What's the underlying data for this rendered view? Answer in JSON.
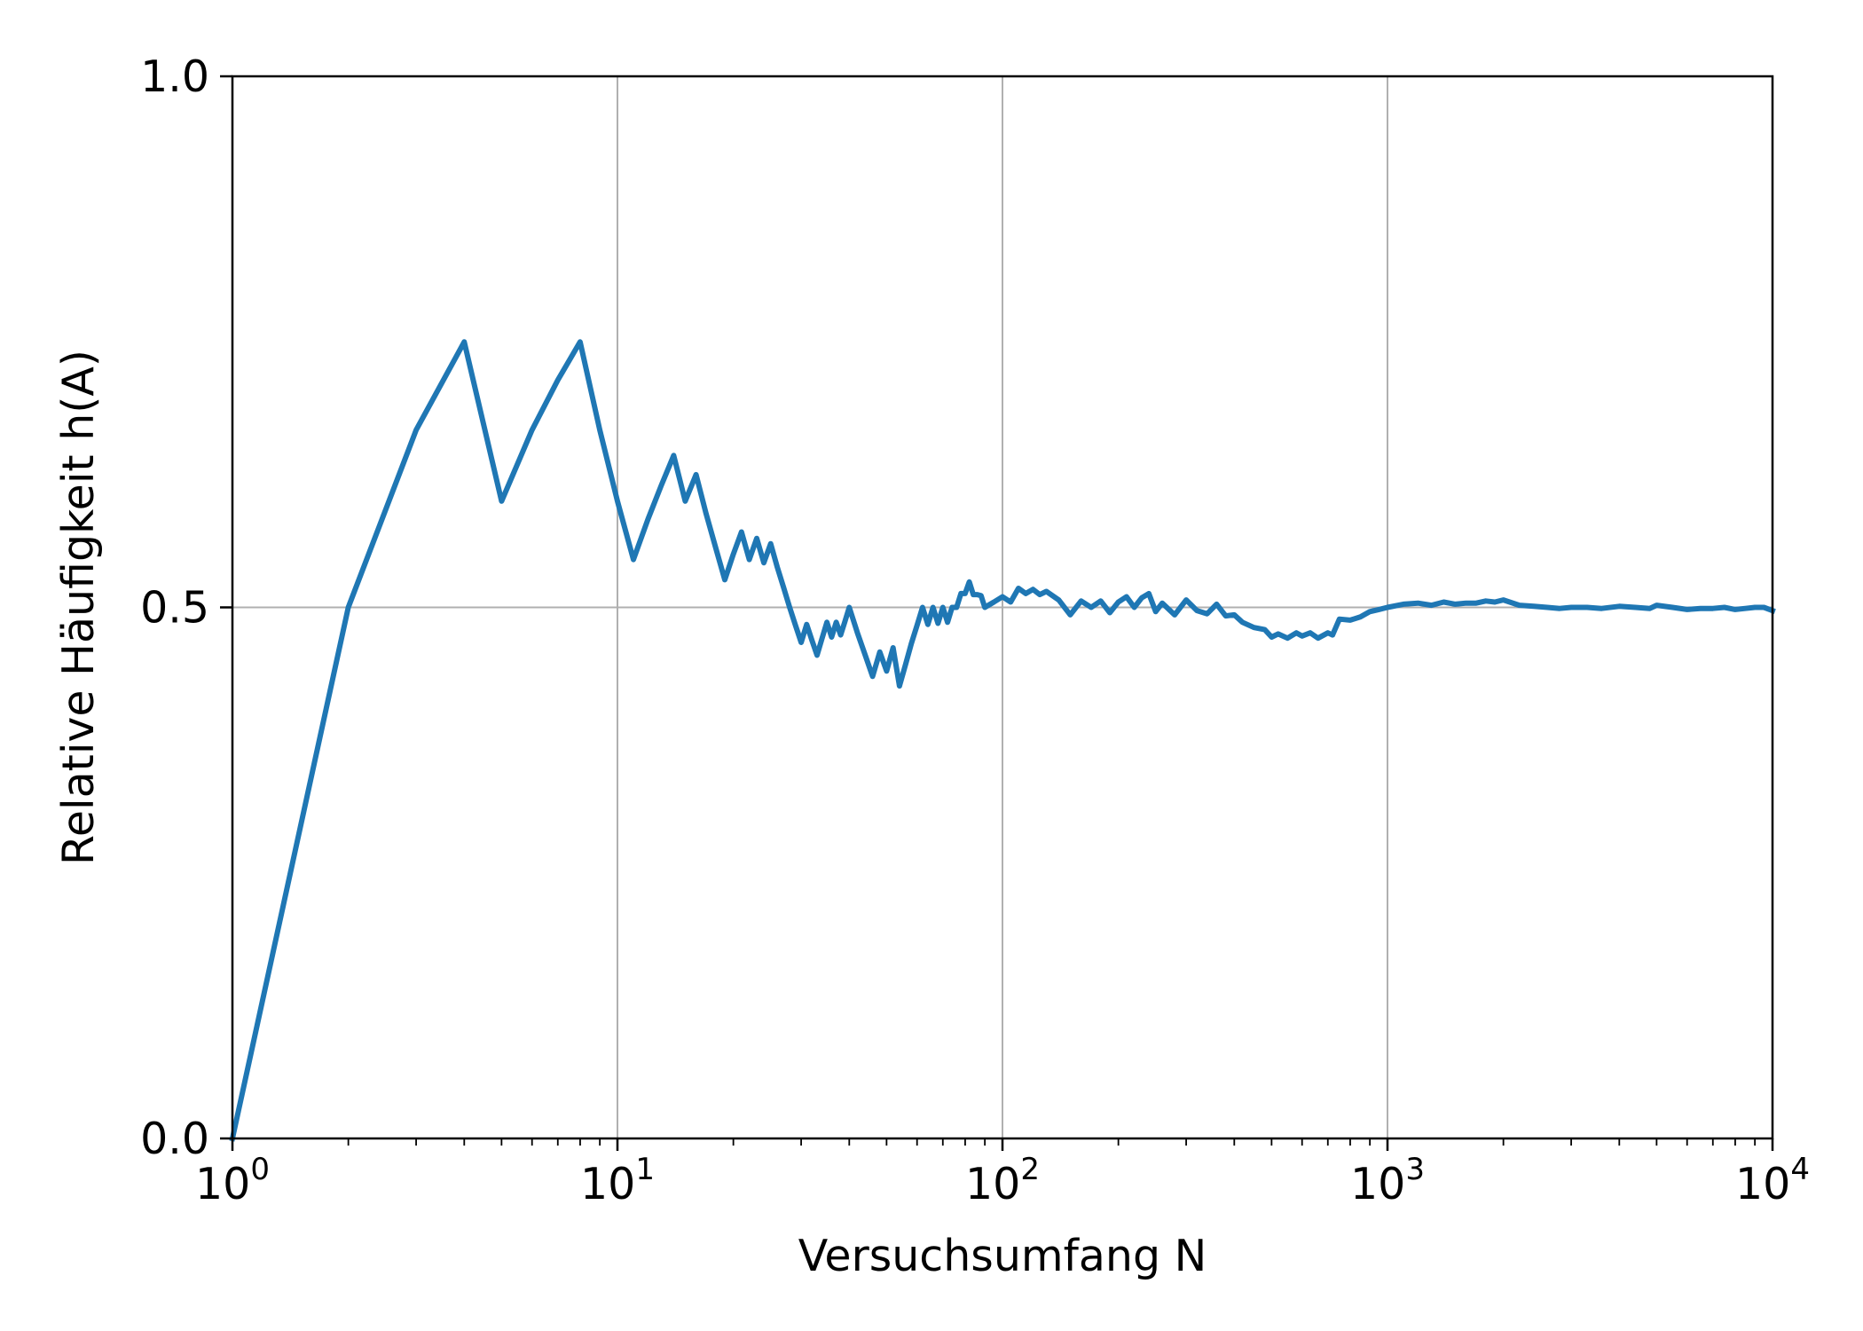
{
  "chart_data": {
    "type": "line",
    "xlabel": "Versuchsumfang N",
    "ylabel": "Relative Häufigkeit h(A)",
    "xscale": "log",
    "xlim": [
      1,
      10000
    ],
    "ylim": [
      0,
      1
    ],
    "x_ticks": [
      {
        "value": 1,
        "base": "10",
        "exp": "0"
      },
      {
        "value": 10,
        "base": "10",
        "exp": "1"
      },
      {
        "value": 100,
        "base": "10",
        "exp": "2"
      },
      {
        "value": 1000,
        "base": "10",
        "exp": "3"
      },
      {
        "value": 10000,
        "base": "10",
        "exp": "4"
      }
    ],
    "y_ticks": [
      {
        "value": 0,
        "label": "0.0"
      },
      {
        "value": 0.5,
        "label": "0.5"
      },
      {
        "value": 1,
        "label": "1.0"
      }
    ],
    "grid": true,
    "line_color": "#1f77b4",
    "series": [
      {
        "x": [
          1,
          2,
          3,
          4,
          5,
          6,
          7,
          8,
          9,
          10,
          11,
          12,
          13,
          14,
          15,
          16,
          17,
          18,
          19,
          20,
          21,
          22,
          23,
          24,
          25,
          26,
          27,
          28,
          29,
          30,
          31,
          32,
          33,
          34,
          35,
          36,
          37,
          38,
          39,
          40,
          42,
          44,
          46,
          48,
          50,
          52,
          54,
          56,
          58,
          60,
          62,
          64,
          66,
          68,
          70,
          72,
          74,
          76,
          78,
          80,
          82,
          84,
          86,
          88,
          90,
          95,
          100,
          105,
          110,
          115,
          120,
          125,
          130,
          140,
          150,
          160,
          170,
          180,
          190,
          200,
          210,
          220,
          230,
          240,
          250,
          260,
          280,
          300,
          320,
          340,
          360,
          380,
          400,
          420,
          450,
          480,
          500,
          520,
          550,
          580,
          600,
          630,
          660,
          700,
          720,
          750,
          800,
          850,
          900,
          950,
          1000,
          1100,
          1200,
          1300,
          1400,
          1500,
          1600,
          1700,
          1800,
          1900,
          2000,
          2200,
          2400,
          2600,
          2800,
          3000,
          3300,
          3600,
          4000,
          4400,
          4800,
          5000,
          5500,
          6000,
          6500,
          7000,
          7500,
          8000,
          8500,
          9000,
          9500,
          10000
        ],
        "y": [
          0.0,
          0.5,
          0.667,
          0.75,
          0.6,
          0.667,
          0.714,
          0.75,
          0.667,
          0.6,
          0.545,
          0.583,
          0.615,
          0.643,
          0.6,
          0.625,
          0.588,
          0.556,
          0.526,
          0.55,
          0.571,
          0.545,
          0.565,
          0.542,
          0.56,
          0.538,
          0.519,
          0.5,
          0.483,
          0.467,
          0.484,
          0.469,
          0.455,
          0.471,
          0.486,
          0.472,
          0.486,
          0.474,
          0.487,
          0.5,
          0.476,
          0.455,
          0.435,
          0.458,
          0.44,
          0.462,
          0.426,
          0.446,
          0.466,
          0.483,
          0.5,
          0.484,
          0.5,
          0.485,
          0.5,
          0.486,
          0.5,
          0.5,
          0.513,
          0.513,
          0.524,
          0.512,
          0.512,
          0.511,
          0.5,
          0.505,
          0.51,
          0.505,
          0.518,
          0.513,
          0.517,
          0.512,
          0.515,
          0.507,
          0.493,
          0.506,
          0.5,
          0.506,
          0.495,
          0.505,
          0.51,
          0.5,
          0.509,
          0.513,
          0.496,
          0.504,
          0.493,
          0.507,
          0.497,
          0.494,
          0.503,
          0.492,
          0.493,
          0.486,
          0.481,
          0.479,
          0.472,
          0.475,
          0.471,
          0.476,
          0.473,
          0.476,
          0.471,
          0.476,
          0.474,
          0.489,
          0.488,
          0.491,
          0.496,
          0.498,
          0.5,
          0.503,
          0.504,
          0.502,
          0.505,
          0.503,
          0.504,
          0.504,
          0.506,
          0.505,
          0.507,
          0.502,
          0.501,
          0.5,
          0.499,
          0.5,
          0.5,
          0.499,
          0.501,
          0.5,
          0.499,
          0.502,
          0.5,
          0.498,
          0.499,
          0.499,
          0.5,
          0.498,
          0.499,
          0.5,
          0.5,
          0.497
        ]
      }
    ]
  }
}
